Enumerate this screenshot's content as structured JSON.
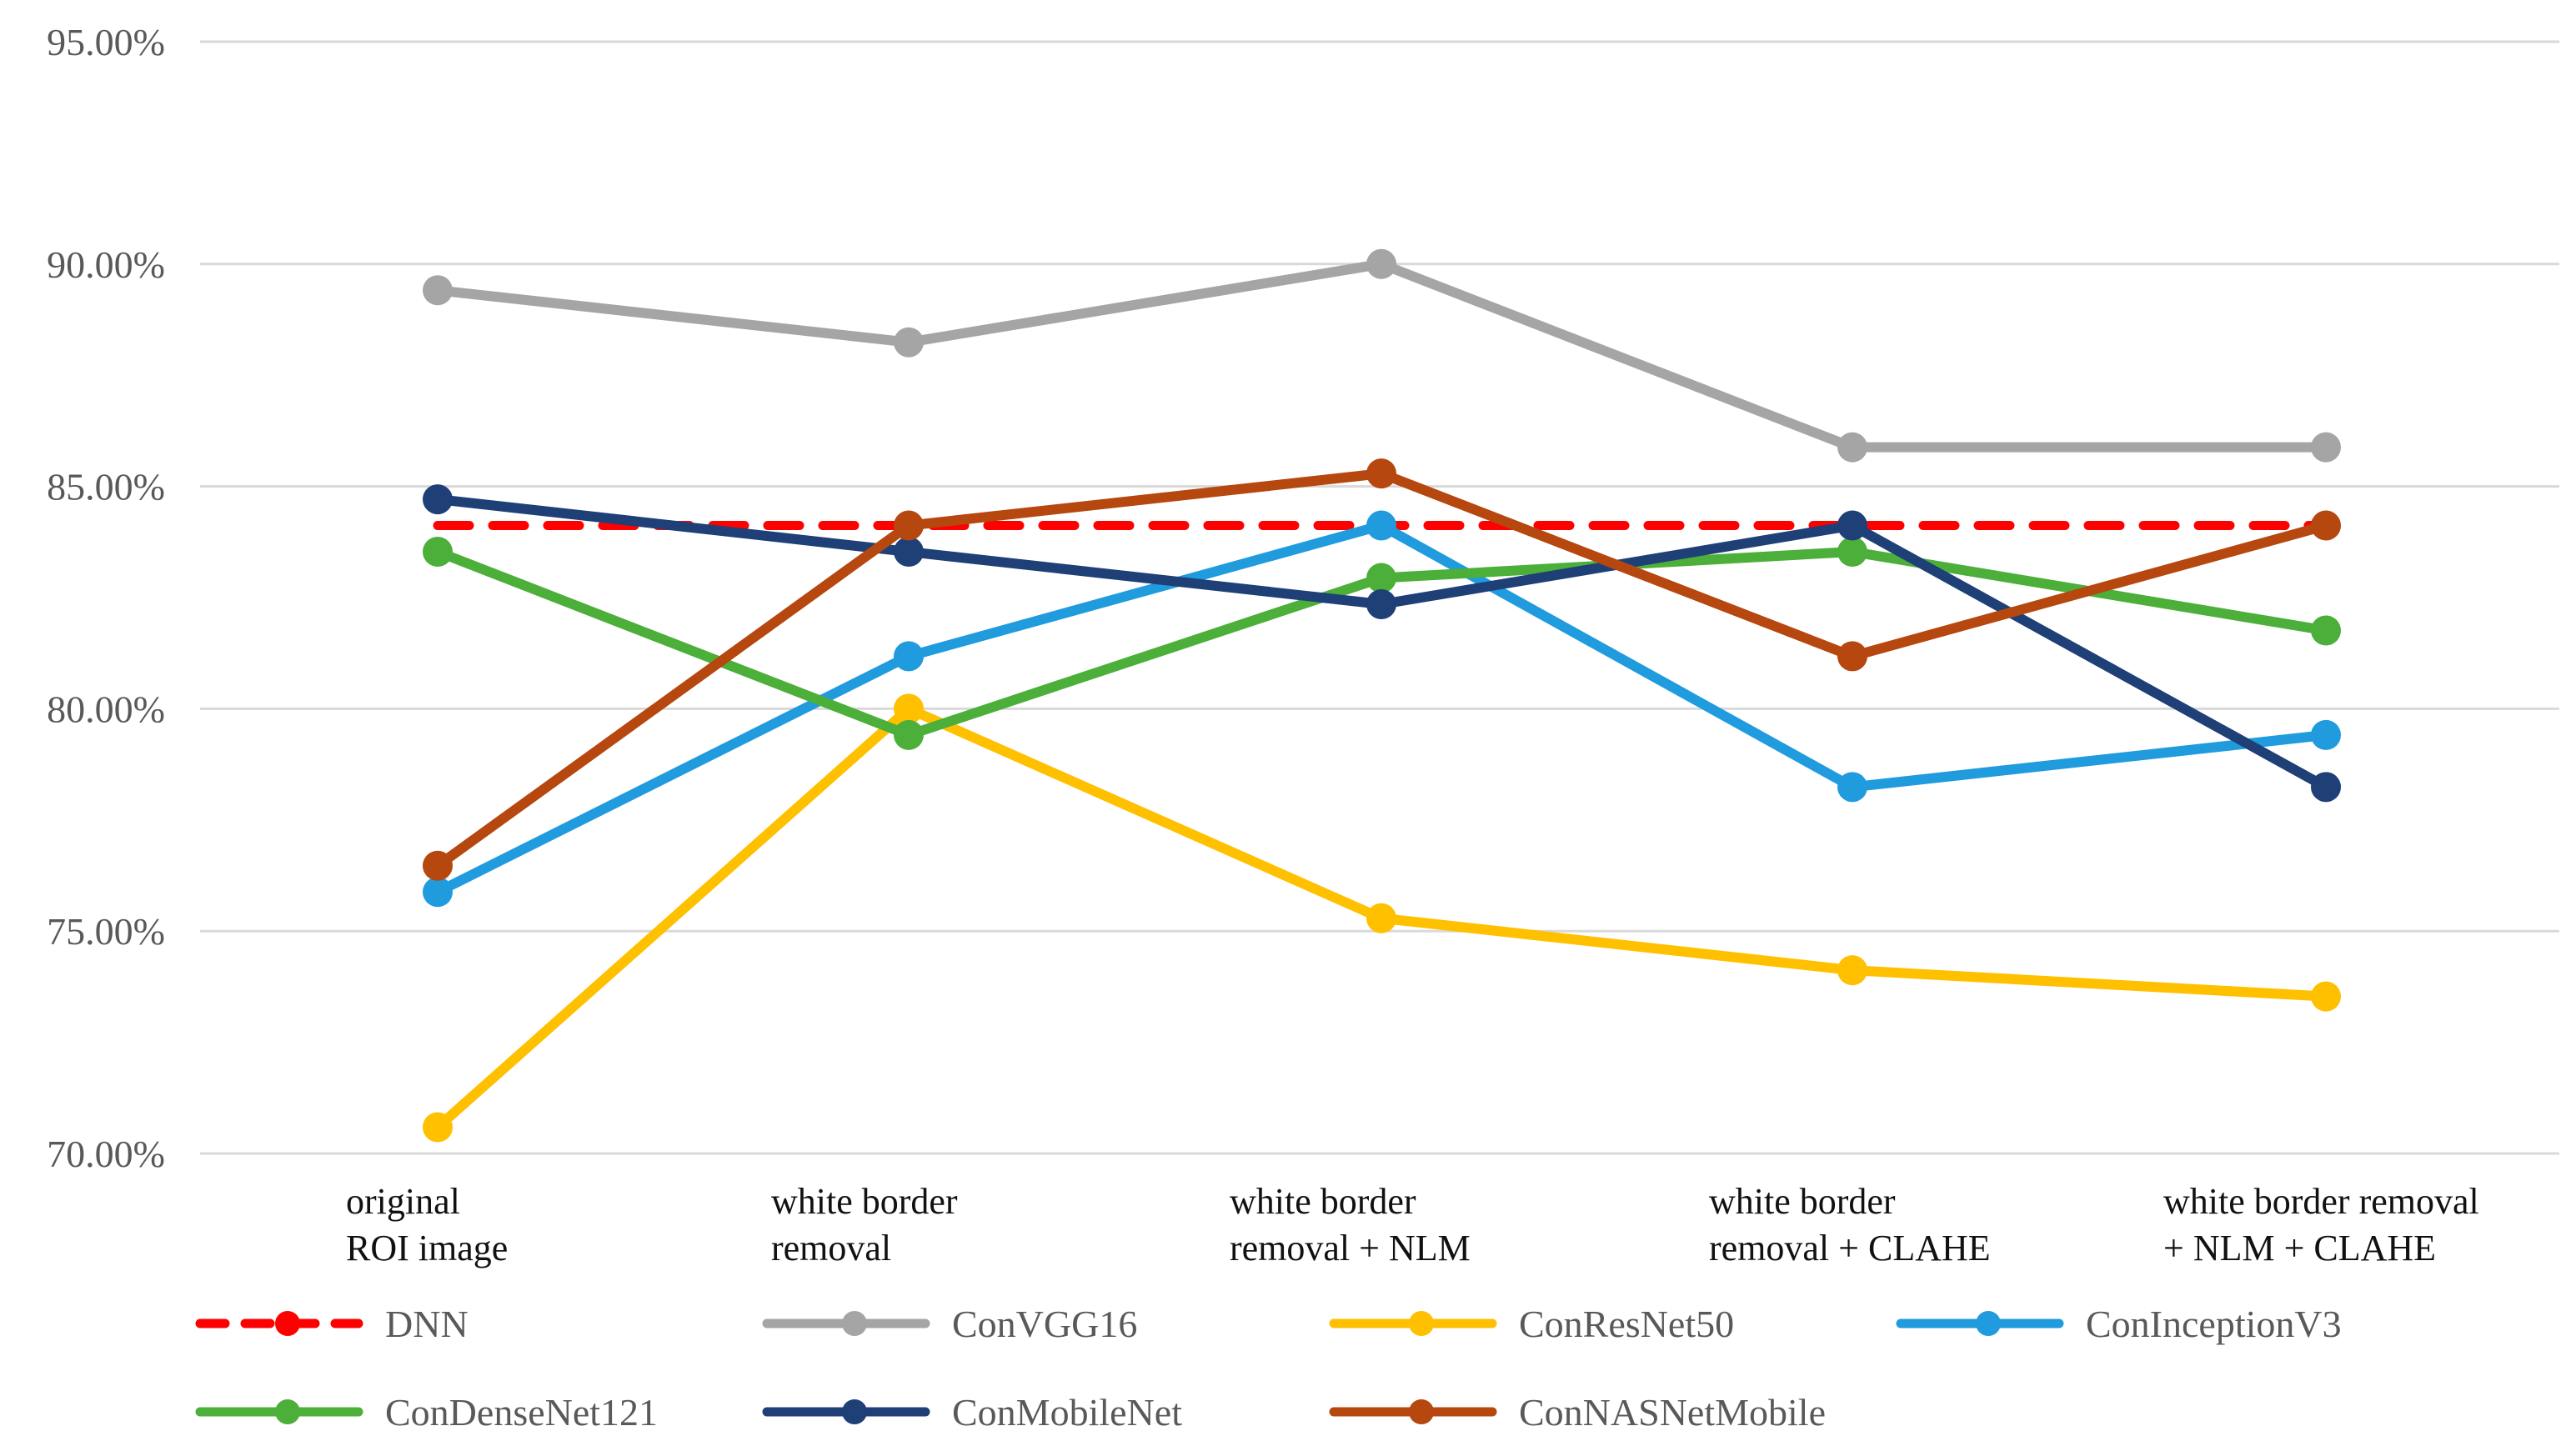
{
  "chart_data": {
    "type": "line",
    "title": "",
    "xlabel": "",
    "ylabel": "",
    "ylim": [
      70,
      95
    ],
    "yticks": [
      70,
      75,
      80,
      85,
      90,
      95
    ],
    "ytick_labels": [
      "70.00%",
      "75.00%",
      "80.00%",
      "85.00%",
      "90.00%",
      "95.00%"
    ],
    "grid": true,
    "legend_position": "bottom",
    "categories": [
      [
        "original",
        "ROI image"
      ],
      [
        "white border",
        "removal"
      ],
      [
        "white border",
        "removal + NLM"
      ],
      [
        "white border",
        "removal + CLAHE"
      ],
      [
        "white border removal",
        "+ NLM + CLAHE"
      ]
    ],
    "series": [
      {
        "name": "DNN",
        "color": "#FF0000",
        "dashed": true,
        "values": [
          84.12,
          84.12,
          84.12,
          84.12,
          84.12
        ]
      },
      {
        "name": "ConVGG16",
        "color": "#A5A5A5",
        "dashed": false,
        "values": [
          89.41,
          88.24,
          90.0,
          85.88,
          85.88
        ]
      },
      {
        "name": "ConResNet50",
        "color": "#FFC000",
        "dashed": false,
        "values": [
          70.59,
          80.0,
          75.29,
          74.12,
          73.53
        ]
      },
      {
        "name": "ConInceptionV3",
        "color": "#1F9BDE",
        "dashed": false,
        "values": [
          75.88,
          81.18,
          84.12,
          78.24,
          79.41
        ]
      },
      {
        "name": "ConDenseNet121",
        "color": "#4CAF3A",
        "dashed": false,
        "values": [
          83.53,
          79.41,
          82.94,
          83.53,
          81.76
        ]
      },
      {
        "name": "ConMobileNet",
        "color": "#1F3F77",
        "dashed": false,
        "values": [
          84.71,
          83.53,
          82.35,
          84.12,
          78.24
        ]
      },
      {
        "name": "ConNASNetMobile",
        "color": "#B5470F",
        "dashed": false,
        "values": [
          76.47,
          84.12,
          85.29,
          81.18,
          84.12
        ]
      }
    ]
  }
}
